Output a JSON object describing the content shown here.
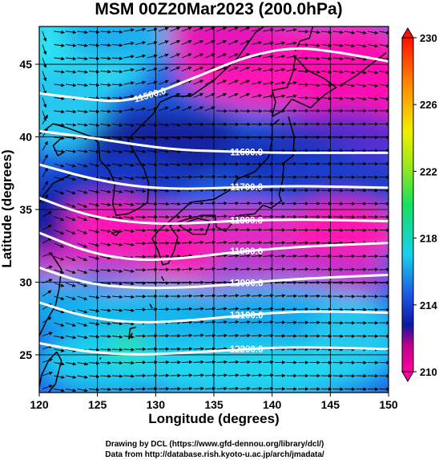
{
  "chart_data": {
    "type": "heatmap",
    "title": "MSM 00Z20Mar2023 (200.0hPa)",
    "xlabel": "Longitude (degrees)",
    "ylabel": "Latitude  (degrees)",
    "xlim": [
      120,
      150
    ],
    "ylim": [
      22.4,
      47.6
    ],
    "x_ticks": [
      120,
      125,
      130,
      135,
      140,
      145,
      150
    ],
    "y_ticks": [
      25,
      30,
      35,
      40,
      45
    ],
    "shading_variable": "temperature",
    "colorbar": {
      "min": 210,
      "max": 230,
      "ticks": [
        210,
        214,
        218,
        222,
        226,
        230
      ],
      "colors": [
        "#ff00a0",
        "#0a1aa0",
        "#1e4ee0",
        "#18d0ee",
        "#18e060",
        "#f0f000",
        "#ff6000",
        "#ff0000"
      ]
    },
    "contours": [
      {
        "label": "11500.0",
        "points": [
          [
            120,
            43.0
          ],
          [
            124,
            42.6
          ],
          [
            127,
            42.4
          ],
          [
            130,
            43.0
          ],
          [
            134,
            44.3
          ],
          [
            138,
            45.6
          ],
          [
            142,
            46.2
          ],
          [
            146,
            45.8
          ],
          [
            150,
            45.2
          ]
        ]
      },
      {
        "label": "11600.0",
        "points": [
          [
            120,
            40.4
          ],
          [
            124,
            40.0
          ],
          [
            128,
            39.5
          ],
          [
            132,
            39.1
          ],
          [
            136,
            39.0
          ],
          [
            140,
            38.9
          ],
          [
            144,
            38.9
          ],
          [
            150,
            38.9
          ]
        ]
      },
      {
        "label": "11700.0",
        "points": [
          [
            120,
            38.1
          ],
          [
            124,
            37.2
          ],
          [
            128,
            36.6
          ],
          [
            132,
            36.4
          ],
          [
            136,
            36.5
          ],
          [
            140,
            36.6
          ],
          [
            144,
            36.6
          ],
          [
            150,
            36.5
          ]
        ]
      },
      {
        "label": "11800.0",
        "points": [
          [
            120,
            35.8
          ],
          [
            124,
            34.6
          ],
          [
            128,
            34.1
          ],
          [
            132,
            34.0
          ],
          [
            136,
            34.2
          ],
          [
            140,
            34.3
          ],
          [
            144,
            34.3
          ],
          [
            150,
            34.2
          ]
        ]
      },
      {
        "label": "11900.0",
        "points": [
          [
            120,
            33.4
          ],
          [
            124,
            32.1
          ],
          [
            128,
            31.5
          ],
          [
            132,
            31.6
          ],
          [
            136,
            32.0
          ],
          [
            140,
            32.3
          ],
          [
            144,
            32.5
          ],
          [
            150,
            32.7
          ]
        ]
      },
      {
        "label": "12000.0",
        "points": [
          [
            120,
            31.0
          ],
          [
            124,
            29.9
          ],
          [
            128,
            29.6
          ],
          [
            132,
            29.6
          ],
          [
            136,
            29.8
          ],
          [
            140,
            30.1
          ],
          [
            144,
            30.3
          ],
          [
            150,
            30.5
          ]
        ]
      },
      {
        "label": "12100.0",
        "points": [
          [
            120,
            28.6
          ],
          [
            124,
            27.6
          ],
          [
            128,
            27.2
          ],
          [
            132,
            27.3
          ],
          [
            136,
            27.6
          ],
          [
            140,
            27.9
          ],
          [
            144,
            28.0
          ],
          [
            150,
            27.9
          ]
        ]
      },
      {
        "label": "12200.0",
        "points": [
          [
            120,
            25.8
          ],
          [
            124,
            25.2
          ],
          [
            128,
            25.0
          ],
          [
            132,
            25.1
          ],
          [
            136,
            25.3
          ],
          [
            140,
            25.5
          ],
          [
            144,
            25.5
          ],
          [
            150,
            25.4
          ]
        ]
      }
    ]
  },
  "credits": {
    "line1": "Drawing by DCL (https://www.gfd-dennou.org/library/dcl/)",
    "line2": "Data from http://database.rish.kyoto-u.ac.jp/arch/jmadata/"
  }
}
